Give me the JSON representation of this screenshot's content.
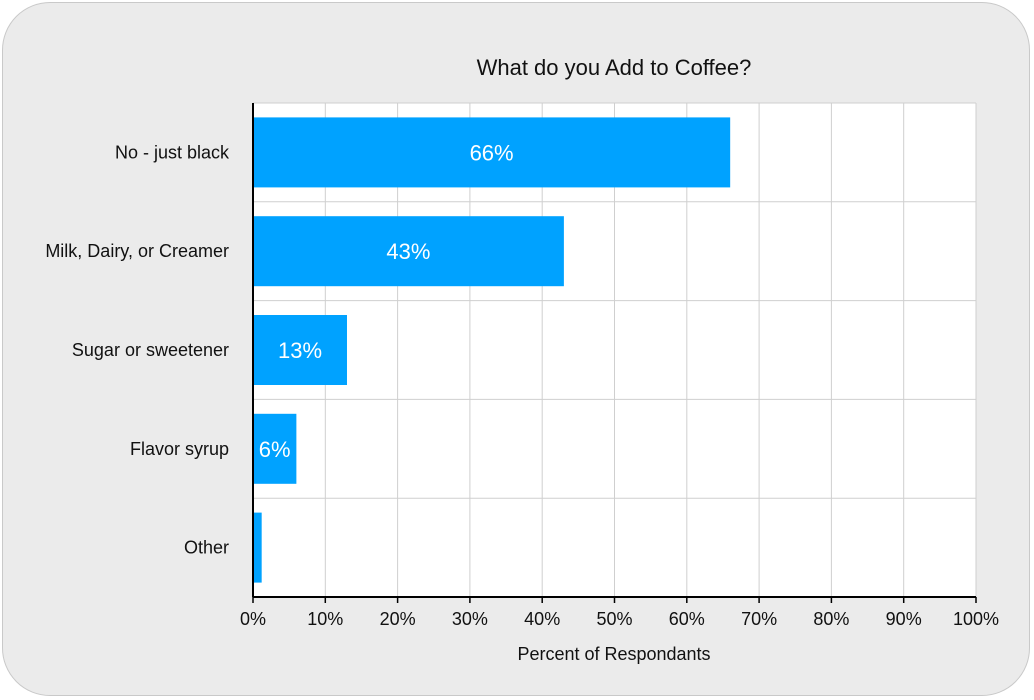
{
  "chart_data": {
    "type": "bar",
    "orientation": "horizontal",
    "title": "What do you Add to Coffee?",
    "xlabel": "Percent of Respondants",
    "ylabel": "",
    "xlim": [
      0,
      100
    ],
    "x_ticks": [
      "0%",
      "10%",
      "20%",
      "30%",
      "40%",
      "50%",
      "60%",
      "70%",
      "80%",
      "90%",
      "100%"
    ],
    "grid": true,
    "bar_color": "#00a2ff",
    "categories": [
      "No - just black",
      "Milk, Dairy, or Creamer",
      "Sugar or sweetener",
      "Flavor syrup",
      "Other"
    ],
    "values": [
      66,
      43,
      13,
      6,
      1.2
    ],
    "data_labels": [
      "66%",
      "43%",
      "13%",
      "6%",
      ""
    ]
  }
}
